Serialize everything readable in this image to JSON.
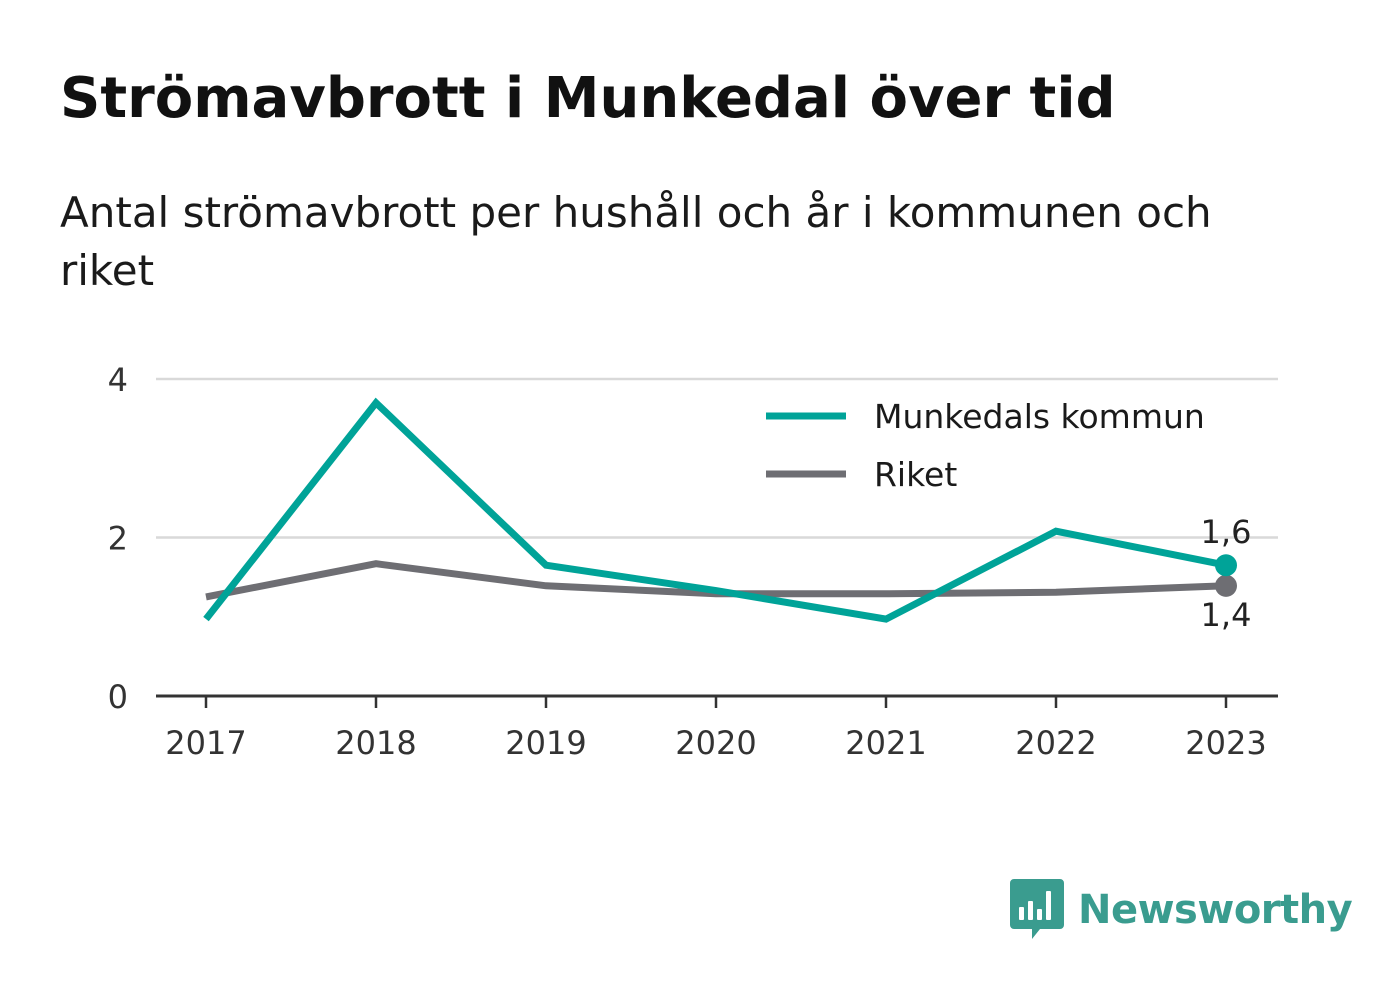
{
  "header": {
    "title": "Strömavbrott i Munkedal över tid",
    "subtitle": "Antal strömavbrott per hushåll och år i kommunen och riket"
  },
  "colors": {
    "munkedal": "#00A398",
    "riket": "#6E6E73",
    "grid": "#D9D9D9",
    "axis": "#333333",
    "brand": "#3A9C8F"
  },
  "chart_data": {
    "type": "line",
    "title": "Strömavbrott i Munkedal över tid",
    "subtitle": "Antal strömavbrott per hushåll och år i kommunen och riket",
    "categories": [
      "2017",
      "2018",
      "2019",
      "2020",
      "2021",
      "2022",
      "2023"
    ],
    "y_ticks": [
      0,
      2,
      4
    ],
    "ylim": [
      0,
      4
    ],
    "grid": true,
    "legend_position": "top-right",
    "series": [
      {
        "name": "Munkedals kommun",
        "color": "#00A398",
        "values": [
          0.97,
          3.7,
          1.65,
          1.33,
          0.97,
          2.08,
          1.65
        ],
        "end_label": "1,6"
      },
      {
        "name": "Riket",
        "color": "#6E6E73",
        "values": [
          1.25,
          1.67,
          1.39,
          1.29,
          1.29,
          1.31,
          1.39
        ],
        "end_label": "1,4"
      }
    ]
  },
  "brand": {
    "name": "Newsworthy",
    "icon": "newsworthy-logo-icon"
  }
}
